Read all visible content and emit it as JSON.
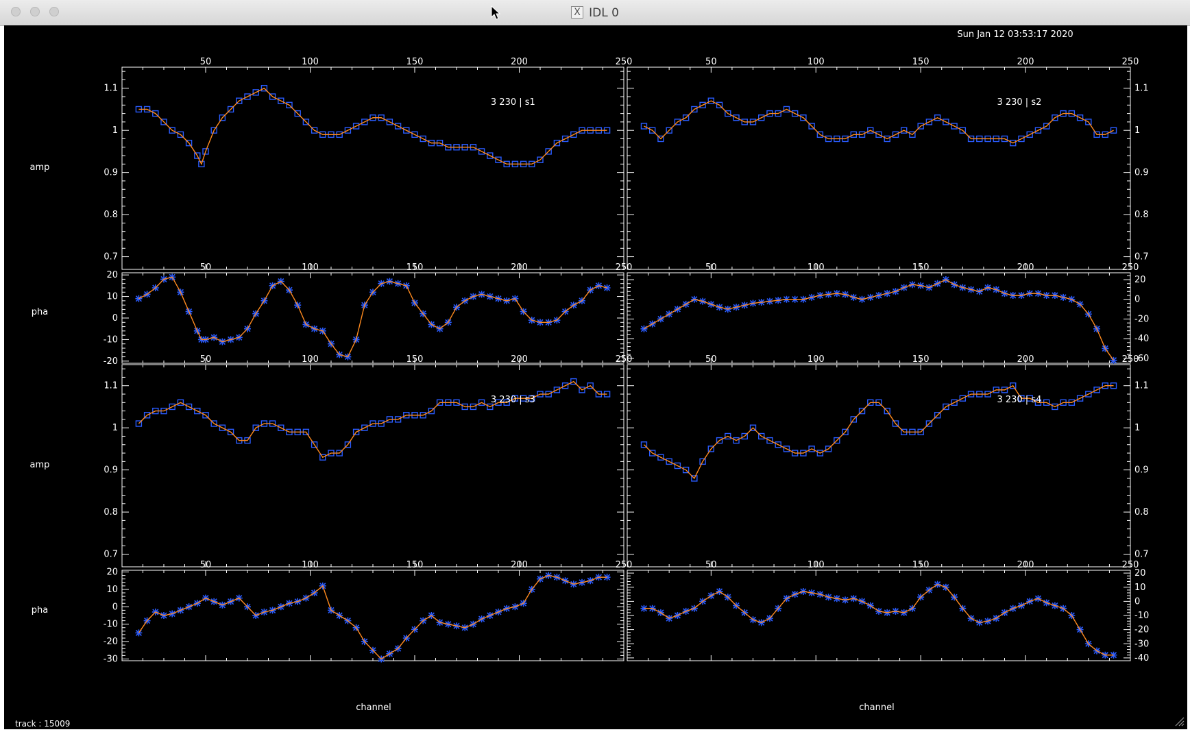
{
  "window": {
    "title": "IDL 0",
    "x_icon_glyph": "X"
  },
  "plot": {
    "timestamp": "Sun Jan 12 03:53:17 2020",
    "status": "track : 15009",
    "amp_label": "amp",
    "pha_label": "pha",
    "x_label": "channel",
    "colors": {
      "line": "#ff8a1e",
      "symbol": "#2a5cff",
      "axis": "#ffffff",
      "background": "#000000"
    }
  },
  "chart_data": [
    {
      "type": "line",
      "panel": "3 230 | s1",
      "x": [
        18,
        22,
        26,
        30,
        34,
        38,
        42,
        46,
        48,
        50,
        54,
        58,
        62,
        66,
        70,
        74,
        78,
        82,
        86,
        90,
        94,
        98,
        102,
        106,
        110,
        114,
        118,
        122,
        126,
        130,
        134,
        138,
        142,
        146,
        150,
        154,
        158,
        162,
        166,
        170,
        174,
        178,
        182,
        186,
        190,
        194,
        198,
        202,
        206,
        210,
        214,
        218,
        222,
        226,
        230,
        234,
        238,
        242
      ],
      "series": [
        {
          "name": "amp",
          "values": [
            1.05,
            1.05,
            1.04,
            1.02,
            1.0,
            0.99,
            0.97,
            0.94,
            0.92,
            0.95,
            1.0,
            1.03,
            1.05,
            1.07,
            1.08,
            1.09,
            1.1,
            1.08,
            1.07,
            1.06,
            1.04,
            1.02,
            1.0,
            0.99,
            0.99,
            0.99,
            1.0,
            1.01,
            1.02,
            1.03,
            1.03,
            1.02,
            1.01,
            1.0,
            0.99,
            0.98,
            0.97,
            0.97,
            0.96,
            0.96,
            0.96,
            0.96,
            0.95,
            0.94,
            0.93,
            0.92,
            0.92,
            0.92,
            0.92,
            0.93,
            0.95,
            0.97,
            0.98,
            0.99,
            1.0,
            1.0,
            1.0,
            1.0
          ]
        },
        {
          "name": "pha",
          "values": [
            9,
            11,
            14,
            18,
            19,
            12,
            3,
            -6,
            -10,
            -10,
            -9,
            -11,
            -10,
            -9,
            -5,
            2,
            8,
            15,
            17,
            13,
            6,
            -3,
            -5,
            -6,
            -12,
            -17,
            -18,
            -10,
            6,
            12,
            16,
            17,
            16,
            15,
            7,
            2,
            -3,
            -5,
            -2,
            5,
            8,
            10,
            11,
            10,
            9,
            8,
            9,
            3,
            -1,
            -2,
            -2,
            -1,
            3,
            6,
            8,
            13,
            15,
            14
          ]
        }
      ],
      "amp_ylim": [
        0.67,
        1.15
      ],
      "amp_yticks": [
        0.7,
        0.8,
        0.9,
        1.0,
        1.1
      ],
      "pha_ylim": [
        -21,
        21
      ],
      "pha_yticks": [
        -20,
        -10,
        0,
        10,
        20
      ],
      "xlim": [
        10,
        250
      ],
      "xticks": [
        50,
        100,
        150,
        200,
        250
      ]
    },
    {
      "type": "line",
      "panel": "3 230 | s2",
      "x": [
        18,
        22,
        26,
        30,
        34,
        38,
        42,
        46,
        50,
        54,
        58,
        62,
        66,
        70,
        74,
        78,
        82,
        86,
        90,
        94,
        98,
        102,
        106,
        110,
        114,
        118,
        122,
        126,
        130,
        134,
        138,
        142,
        146,
        150,
        154,
        158,
        162,
        166,
        170,
        174,
        178,
        182,
        186,
        190,
        194,
        198,
        202,
        206,
        210,
        214,
        218,
        222,
        226,
        230,
        234,
        238,
        242
      ],
      "series": [
        {
          "name": "amp",
          "values": [
            1.01,
            1.0,
            0.98,
            1.0,
            1.02,
            1.03,
            1.05,
            1.06,
            1.07,
            1.06,
            1.04,
            1.03,
            1.02,
            1.02,
            1.03,
            1.04,
            1.04,
            1.05,
            1.04,
            1.03,
            1.01,
            0.99,
            0.98,
            0.98,
            0.98,
            0.99,
            0.99,
            1.0,
            0.99,
            0.98,
            0.99,
            1.0,
            0.99,
            1.01,
            1.02,
            1.03,
            1.02,
            1.01,
            1.0,
            0.98,
            0.98,
            0.98,
            0.98,
            0.98,
            0.97,
            0.98,
            0.99,
            1.0,
            1.01,
            1.03,
            1.04,
            1.04,
            1.03,
            1.02,
            0.99,
            0.99,
            1.0
          ]
        },
        {
          "name": "pha",
          "values": [
            -30,
            -25,
            -20,
            -15,
            -10,
            -5,
            0,
            -2,
            -5,
            -8,
            -10,
            -8,
            -6,
            -4,
            -3,
            -2,
            -1,
            0,
            0,
            0,
            2,
            4,
            5,
            6,
            5,
            2,
            0,
            2,
            4,
            6,
            8,
            12,
            15,
            14,
            12,
            16,
            20,
            15,
            12,
            10,
            8,
            12,
            10,
            6,
            4,
            4,
            6,
            6,
            4,
            4,
            2,
            0,
            -5,
            -15,
            -30,
            -50,
            -62
          ]
        }
      ],
      "amp_ylim": [
        0.67,
        1.15
      ],
      "amp_yticks": [
        0.7,
        0.8,
        0.9,
        1.0,
        1.1
      ],
      "pha_ylim": [
        -65,
        27
      ],
      "pha_yticks": [
        -60,
        -40,
        -20,
        0,
        20
      ],
      "xlim": [
        10,
        250
      ],
      "xticks": [
        50,
        100,
        150,
        200,
        250
      ]
    },
    {
      "type": "line",
      "panel": "3 230 | s3",
      "x": [
        18,
        22,
        26,
        30,
        34,
        38,
        42,
        46,
        50,
        54,
        58,
        62,
        66,
        70,
        74,
        78,
        82,
        86,
        90,
        94,
        98,
        102,
        106,
        110,
        114,
        118,
        122,
        126,
        130,
        134,
        138,
        142,
        146,
        150,
        154,
        158,
        162,
        166,
        170,
        174,
        178,
        182,
        186,
        190,
        194,
        198,
        202,
        206,
        210,
        214,
        218,
        222,
        226,
        230,
        234,
        238,
        242
      ],
      "series": [
        {
          "name": "amp",
          "values": [
            1.01,
            1.03,
            1.04,
            1.04,
            1.05,
            1.06,
            1.05,
            1.04,
            1.03,
            1.01,
            1.0,
            0.99,
            0.97,
            0.97,
            1.0,
            1.01,
            1.01,
            1.0,
            0.99,
            0.99,
            0.99,
            0.96,
            0.93,
            0.94,
            0.94,
            0.96,
            0.99,
            1.0,
            1.01,
            1.01,
            1.02,
            1.02,
            1.03,
            1.03,
            1.03,
            1.04,
            1.06,
            1.06,
            1.06,
            1.05,
            1.05,
            1.06,
            1.05,
            1.06,
            1.06,
            1.07,
            1.07,
            1.07,
            1.08,
            1.08,
            1.09,
            1.1,
            1.11,
            1.09,
            1.1,
            1.08,
            1.08
          ]
        },
        {
          "name": "pha",
          "values": [
            -15,
            -8,
            -3,
            -5,
            -4,
            -2,
            0,
            2,
            5,
            3,
            1,
            3,
            5,
            0,
            -5,
            -3,
            -2,
            0,
            2,
            3,
            5,
            8,
            12,
            -2,
            -5,
            -8,
            -12,
            -20,
            -25,
            -30,
            -27,
            -24,
            -18,
            -13,
            -8,
            -5,
            -9,
            -10,
            -11,
            -12,
            -10,
            -7,
            -5,
            -3,
            -1,
            0,
            2,
            10,
            16,
            18,
            17,
            15,
            13,
            14,
            15,
            17,
            17
          ]
        }
      ],
      "amp_ylim": [
        0.67,
        1.15
      ],
      "amp_yticks": [
        0.7,
        0.8,
        0.9,
        1.0,
        1.1
      ],
      "pha_ylim": [
        -31,
        21
      ],
      "pha_yticks": [
        -30,
        -20,
        -10,
        0,
        10,
        20
      ],
      "xlim": [
        10,
        250
      ],
      "xticks": [
        50,
        100,
        150,
        200,
        250
      ]
    },
    {
      "type": "line",
      "panel": "3 230 | s4",
      "x": [
        18,
        22,
        26,
        30,
        34,
        38,
        42,
        46,
        50,
        54,
        58,
        62,
        66,
        70,
        74,
        78,
        82,
        86,
        90,
        94,
        98,
        102,
        106,
        110,
        114,
        118,
        122,
        126,
        130,
        134,
        138,
        142,
        146,
        150,
        154,
        158,
        162,
        166,
        170,
        174,
        178,
        182,
        186,
        190,
        194,
        198,
        202,
        206,
        210,
        214,
        218,
        222,
        226,
        230,
        234,
        238,
        242
      ],
      "series": [
        {
          "name": "amp",
          "values": [
            0.96,
            0.94,
            0.93,
            0.92,
            0.91,
            0.9,
            0.88,
            0.92,
            0.95,
            0.97,
            0.98,
            0.97,
            0.98,
            1.0,
            0.98,
            0.97,
            0.96,
            0.95,
            0.94,
            0.94,
            0.95,
            0.94,
            0.95,
            0.97,
            0.99,
            1.02,
            1.04,
            1.06,
            1.06,
            1.04,
            1.01,
            0.99,
            0.99,
            0.99,
            1.01,
            1.03,
            1.05,
            1.06,
            1.07,
            1.08,
            1.08,
            1.08,
            1.09,
            1.09,
            1.1,
            1.07,
            1.07,
            1.06,
            1.06,
            1.05,
            1.06,
            1.06,
            1.07,
            1.08,
            1.09,
            1.1,
            1.1
          ]
        },
        {
          "name": "pha",
          "values": [
            -5,
            -5,
            -8,
            -12,
            -10,
            -7,
            -5,
            0,
            4,
            7,
            3,
            -3,
            -8,
            -13,
            -15,
            -12,
            -5,
            2,
            5,
            7,
            6,
            5,
            3,
            2,
            1,
            2,
            0,
            -3,
            -7,
            -8,
            -7,
            -8,
            -5,
            3,
            8,
            12,
            10,
            3,
            -5,
            -12,
            -15,
            -14,
            -12,
            -8,
            -5,
            -3,
            0,
            2,
            -1,
            -3,
            -5,
            -10,
            -20,
            -30,
            -35,
            -38,
            -38
          ]
        }
      ],
      "amp_ylim": [
        0.67,
        1.15
      ],
      "amp_yticks": [
        0.7,
        0.8,
        0.9,
        1.0,
        1.1
      ],
      "pha_ylim": [
        -42,
        22
      ],
      "pha_yticks": [
        -40,
        -30,
        -20,
        -10,
        0,
        10,
        20
      ],
      "xlim": [
        10,
        250
      ],
      "xticks": [
        50,
        100,
        150,
        200,
        250
      ]
    }
  ]
}
